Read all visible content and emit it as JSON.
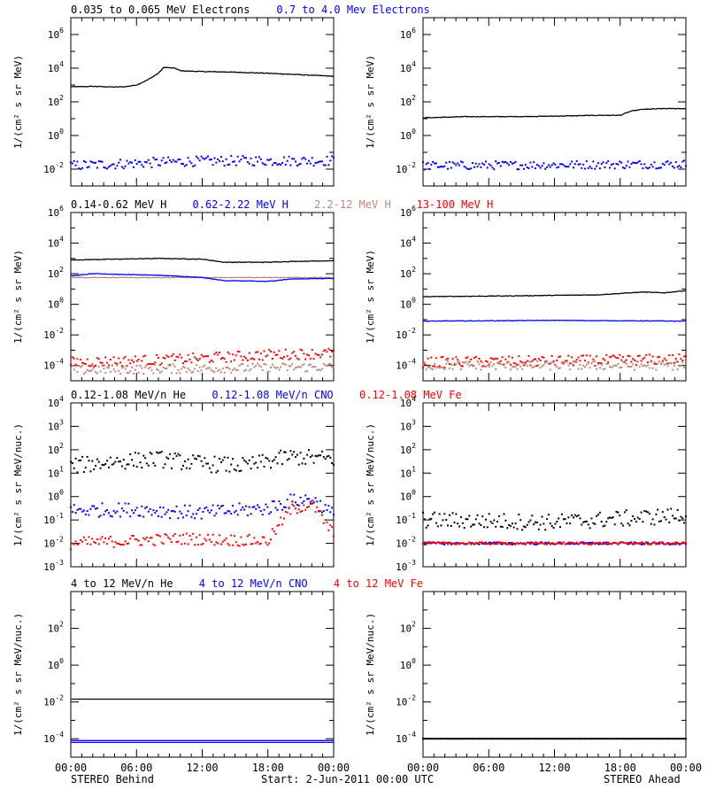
{
  "footer": {
    "left": "STEREO Behind",
    "center": "Start:  2-Jun-2011 00:00 UTC",
    "right": "STEREO Ahead"
  },
  "time_ticks": [
    "00:00",
    "06:00",
    "12:00",
    "18:00",
    "00:00"
  ],
  "colors": {
    "black": "#000000",
    "blue": "#0000ff",
    "tan": "#c08878",
    "red": "#ff0000"
  },
  "chart_data": [
    {
      "row": 0,
      "type": "scatter",
      "yscale": "log",
      "ylim_exp": [
        -3,
        7
      ],
      "ylabel": "1/(cm² s sr MeV)",
      "tick_exps": [
        -2,
        0,
        2,
        4,
        6
      ],
      "title_parts": [
        {
          "text": "0.035 to 0.065 MeV Electrons",
          "color": "#000000"
        },
        {
          "text": "0.7 to 4.0 Mev Electrons",
          "color": "#0000ff"
        }
      ],
      "panels": [
        {
          "side": "behind",
          "series": [
            {
              "color": "#000000",
              "style": "line",
              "points": [
                [
                  0,
                  2.9
                ],
                [
                  1,
                  2.9
                ],
                [
                  2,
                  2.92
                ],
                [
                  3,
                  2.9
                ],
                [
                  4,
                  2.88
                ],
                [
                  5,
                  2.9
                ],
                [
                  6,
                  3.0
                ],
                [
                  7,
                  3.3
                ],
                [
                  8,
                  3.7
                ],
                [
                  8.5,
                  4.05
                ],
                [
                  9.5,
                  4.0
                ],
                [
                  10,
                  3.85
                ],
                [
                  11,
                  3.82
                ],
                [
                  12,
                  3.8
                ],
                [
                  14,
                  3.78
                ],
                [
                  16,
                  3.74
                ],
                [
                  18,
                  3.7
                ],
                [
                  20,
                  3.64
                ],
                [
                  22,
                  3.58
                ],
                [
                  24,
                  3.52
                ]
              ]
            },
            {
              "color": "#0000ff",
              "style": "dots",
              "mean": -1.7,
              "spread": 0.3,
              "points": [
                [
                  0,
                  -1.8
                ],
                [
                  6,
                  -1.65
                ],
                [
                  10,
                  -1.55
                ],
                [
                  16,
                  -1.5
                ],
                [
                  24,
                  -1.5
                ]
              ]
            }
          ]
        },
        {
          "side": "ahead",
          "series": [
            {
              "color": "#000000",
              "style": "line",
              "points": [
                [
                  0,
                  1.05
                ],
                [
                  4,
                  1.12
                ],
                [
                  8,
                  1.12
                ],
                [
                  12,
                  1.15
                ],
                [
                  16,
                  1.2
                ],
                [
                  18,
                  1.2
                ],
                [
                  19,
                  1.45
                ],
                [
                  20,
                  1.55
                ],
                [
                  22,
                  1.6
                ],
                [
                  24,
                  1.6
                ]
              ]
            },
            {
              "color": "#0000ff",
              "style": "dots",
              "mean": -1.75,
              "spread": 0.25,
              "points": [
                [
                  0,
                  -1.8
                ],
                [
                  12,
                  -1.75
                ],
                [
                  24,
                  -1.7
                ]
              ]
            }
          ]
        }
      ]
    },
    {
      "row": 1,
      "type": "scatter",
      "yscale": "log",
      "ylim_exp": [
        -5,
        6
      ],
      "ylabel": "1/(cm² s sr MeV)",
      "tick_exps": [
        -4,
        -2,
        0,
        2,
        4,
        6
      ],
      "title_parts": [
        {
          "text": "0.14-0.62 MeV H",
          "color": "#000000"
        },
        {
          "text": "0.62-2.22 MeV H",
          "color": "#0000ff"
        },
        {
          "text": "2.2-12 MeV H",
          "color": "#c08878"
        },
        {
          "text": "13-100 MeV H",
          "color": "#ff0000"
        }
      ],
      "panels": [
        {
          "side": "behind",
          "series": [
            {
              "color": "#c08878",
              "style": "line",
              "points": [
                [
                  0,
                  1.75
                ],
                [
                  24,
                  1.75
                ]
              ]
            },
            {
              "color": "#000000",
              "style": "line",
              "points": [
                [
                  0,
                  2.9
                ],
                [
                  8,
                  3.0
                ],
                [
                  12,
                  2.95
                ],
                [
                  14,
                  2.75
                ],
                [
                  18,
                  2.75
                ],
                [
                  20,
                  2.8
                ],
                [
                  24,
                  2.85
                ]
              ]
            },
            {
              "color": "#0000ff",
              "style": "line",
              "points": [
                [
                  0,
                  1.85
                ],
                [
                  2,
                  2.0
                ],
                [
                  8,
                  1.9
                ],
                [
                  12,
                  1.75
                ],
                [
                  14,
                  1.55
                ],
                [
                  18,
                  1.5
                ],
                [
                  20,
                  1.65
                ],
                [
                  24,
                  1.7
                ]
              ]
            },
            {
              "color": "#ff0000",
              "style": "dots",
              "mean": -3.6,
              "spread": 0.35,
              "points": [
                [
                  0,
                  -3.8
                ],
                [
                  10,
                  -3.6
                ],
                [
                  18,
                  -3.3
                ],
                [
                  24,
                  -3.2
                ]
              ]
            },
            {
              "color": "#c08878",
              "style": "dots",
              "mean": -4.2,
              "spread": 0.3,
              "points": [
                [
                  0,
                  -4.3
                ],
                [
                  24,
                  -4.1
                ]
              ]
            }
          ]
        },
        {
          "side": "ahead",
          "series": [
            {
              "color": "#000000",
              "style": "line",
              "points": [
                [
                  0,
                  0.5
                ],
                [
                  8,
                  0.55
                ],
                [
                  16,
                  0.62
                ],
                [
                  20,
                  0.8
                ],
                [
                  22,
                  0.75
                ],
                [
                  24,
                  0.9
                ]
              ]
            },
            {
              "color": "#0000ff",
              "style": "line",
              "points": [
                [
                  0,
                  -1.1
                ],
                [
                  12,
                  -1.05
                ],
                [
                  24,
                  -1.1
                ]
              ]
            },
            {
              "color": "#ff0000",
              "style": "dots",
              "mean": -3.7,
              "spread": 0.35,
              "points": [
                [
                  0,
                  -3.8
                ],
                [
                  24,
                  -3.6
                ]
              ]
            },
            {
              "color": "#c08878",
              "style": "dots",
              "mean": -4.0,
              "spread": 0.3,
              "points": [
                [
                  0,
                  -4.0
                ],
                [
                  24,
                  -4.0
                ]
              ]
            }
          ]
        }
      ]
    },
    {
      "row": 2,
      "type": "scatter",
      "yscale": "log",
      "ylim_exp": [
        -3,
        4
      ],
      "ylabel": "1/(cm² s sr MeV/nuc.)",
      "tick_exps": [
        -3,
        -2,
        -1,
        0,
        1,
        2,
        3,
        4
      ],
      "title_parts": [
        {
          "text": "0.12-1.08 MeV/n He",
          "color": "#000000"
        },
        {
          "text": "0.12-1.08 MeV/n CNO",
          "color": "#0000ff"
        },
        {
          "text": "0.12-1.08 MeV Fe",
          "color": "#ff0000"
        }
      ],
      "panels": [
        {
          "side": "behind",
          "series": [
            {
              "color": "#000000",
              "style": "dots",
              "mean": 1.5,
              "spread": 0.35,
              "points": [
                [
                  0,
                  1.3
                ],
                [
                  4,
                  1.5
                ],
                [
                  8,
                  1.6
                ],
                [
                  12,
                  1.4
                ],
                [
                  16,
                  1.3
                ],
                [
                  20,
                  1.7
                ],
                [
                  24,
                  1.6
                ]
              ]
            },
            {
              "color": "#0000ff",
              "style": "dots",
              "mean": -0.6,
              "spread": 0.3,
              "points": [
                [
                  0,
                  -0.6
                ],
                [
                  6,
                  -0.55
                ],
                [
                  12,
                  -0.7
                ],
                [
                  18,
                  -0.5
                ],
                [
                  20,
                  -0.2
                ],
                [
                  22,
                  -0.1
                ],
                [
                  24,
                  -0.8
                ]
              ]
            },
            {
              "color": "#ff0000",
              "style": "dots",
              "mean": -1.9,
              "spread": 0.25,
              "points": [
                [
                  0,
                  -2.0
                ],
                [
                  10,
                  -1.8
                ],
                [
                  18,
                  -1.9
                ],
                [
                  20,
                  -0.6
                ],
                [
                  22,
                  -0.3
                ],
                [
                  24,
                  -1.6
                ]
              ]
            }
          ]
        },
        {
          "side": "ahead",
          "series": [
            {
              "color": "#000000",
              "style": "dots",
              "mean": -1.2,
              "spread": 0.35,
              "points": [
                [
                  0,
                  -1.0
                ],
                [
                  12,
                  -1.1
                ],
                [
                  24,
                  -0.8
                ]
              ]
            },
            {
              "color": "#0000ff",
              "style": "dots",
              "mean": -2.0,
              "spread": 0.05,
              "points": [
                [
                  0,
                  -2.0
                ],
                [
                  24,
                  -2.0
                ]
              ]
            },
            {
              "color": "#ff0000",
              "style": "dots",
              "mean": -2.0,
              "spread": 0.05,
              "points": [
                [
                  0,
                  -2.0
                ],
                [
                  24,
                  -2.0
                ]
              ]
            }
          ]
        }
      ]
    },
    {
      "row": 3,
      "type": "line",
      "yscale": "log",
      "ylim_exp": [
        -5,
        4
      ],
      "ylabel": "1/(cm² s sr MeV/nuc.)",
      "tick_exps": [
        -4,
        -2,
        0,
        2
      ],
      "title_parts": [
        {
          "text": "4 to 12 MeV/n He",
          "color": "#000000"
        },
        {
          "text": "4 to 12 MeV/n CNO",
          "color": "#0000ff"
        },
        {
          "text": "4 to 12 MeV Fe",
          "color": "#ff0000"
        }
      ],
      "panels": [
        {
          "side": "behind",
          "series": [
            {
              "color": "#000000",
              "style": "line",
              "points": [
                [
                  0,
                  -1.85
                ],
                [
                  24,
                  -1.85
                ]
              ]
            },
            {
              "color": "#0000ff",
              "style": "line",
              "points": [
                [
                  0,
                  -4.1
                ],
                [
                  24,
                  -4.1
                ]
              ]
            },
            {
              "color": "#0000ff",
              "style": "line",
              "points": [
                [
                  0,
                  -4.2
                ],
                [
                  24,
                  -4.2
                ]
              ]
            }
          ]
        },
        {
          "side": "ahead",
          "series": [
            {
              "color": "#000000",
              "style": "dots",
              "mean": -4.0,
              "spread": 0.0,
              "points": [
                [
                  0,
                  -4.0
                ],
                [
                  24,
                  -4.0
                ]
              ]
            }
          ]
        }
      ]
    }
  ]
}
